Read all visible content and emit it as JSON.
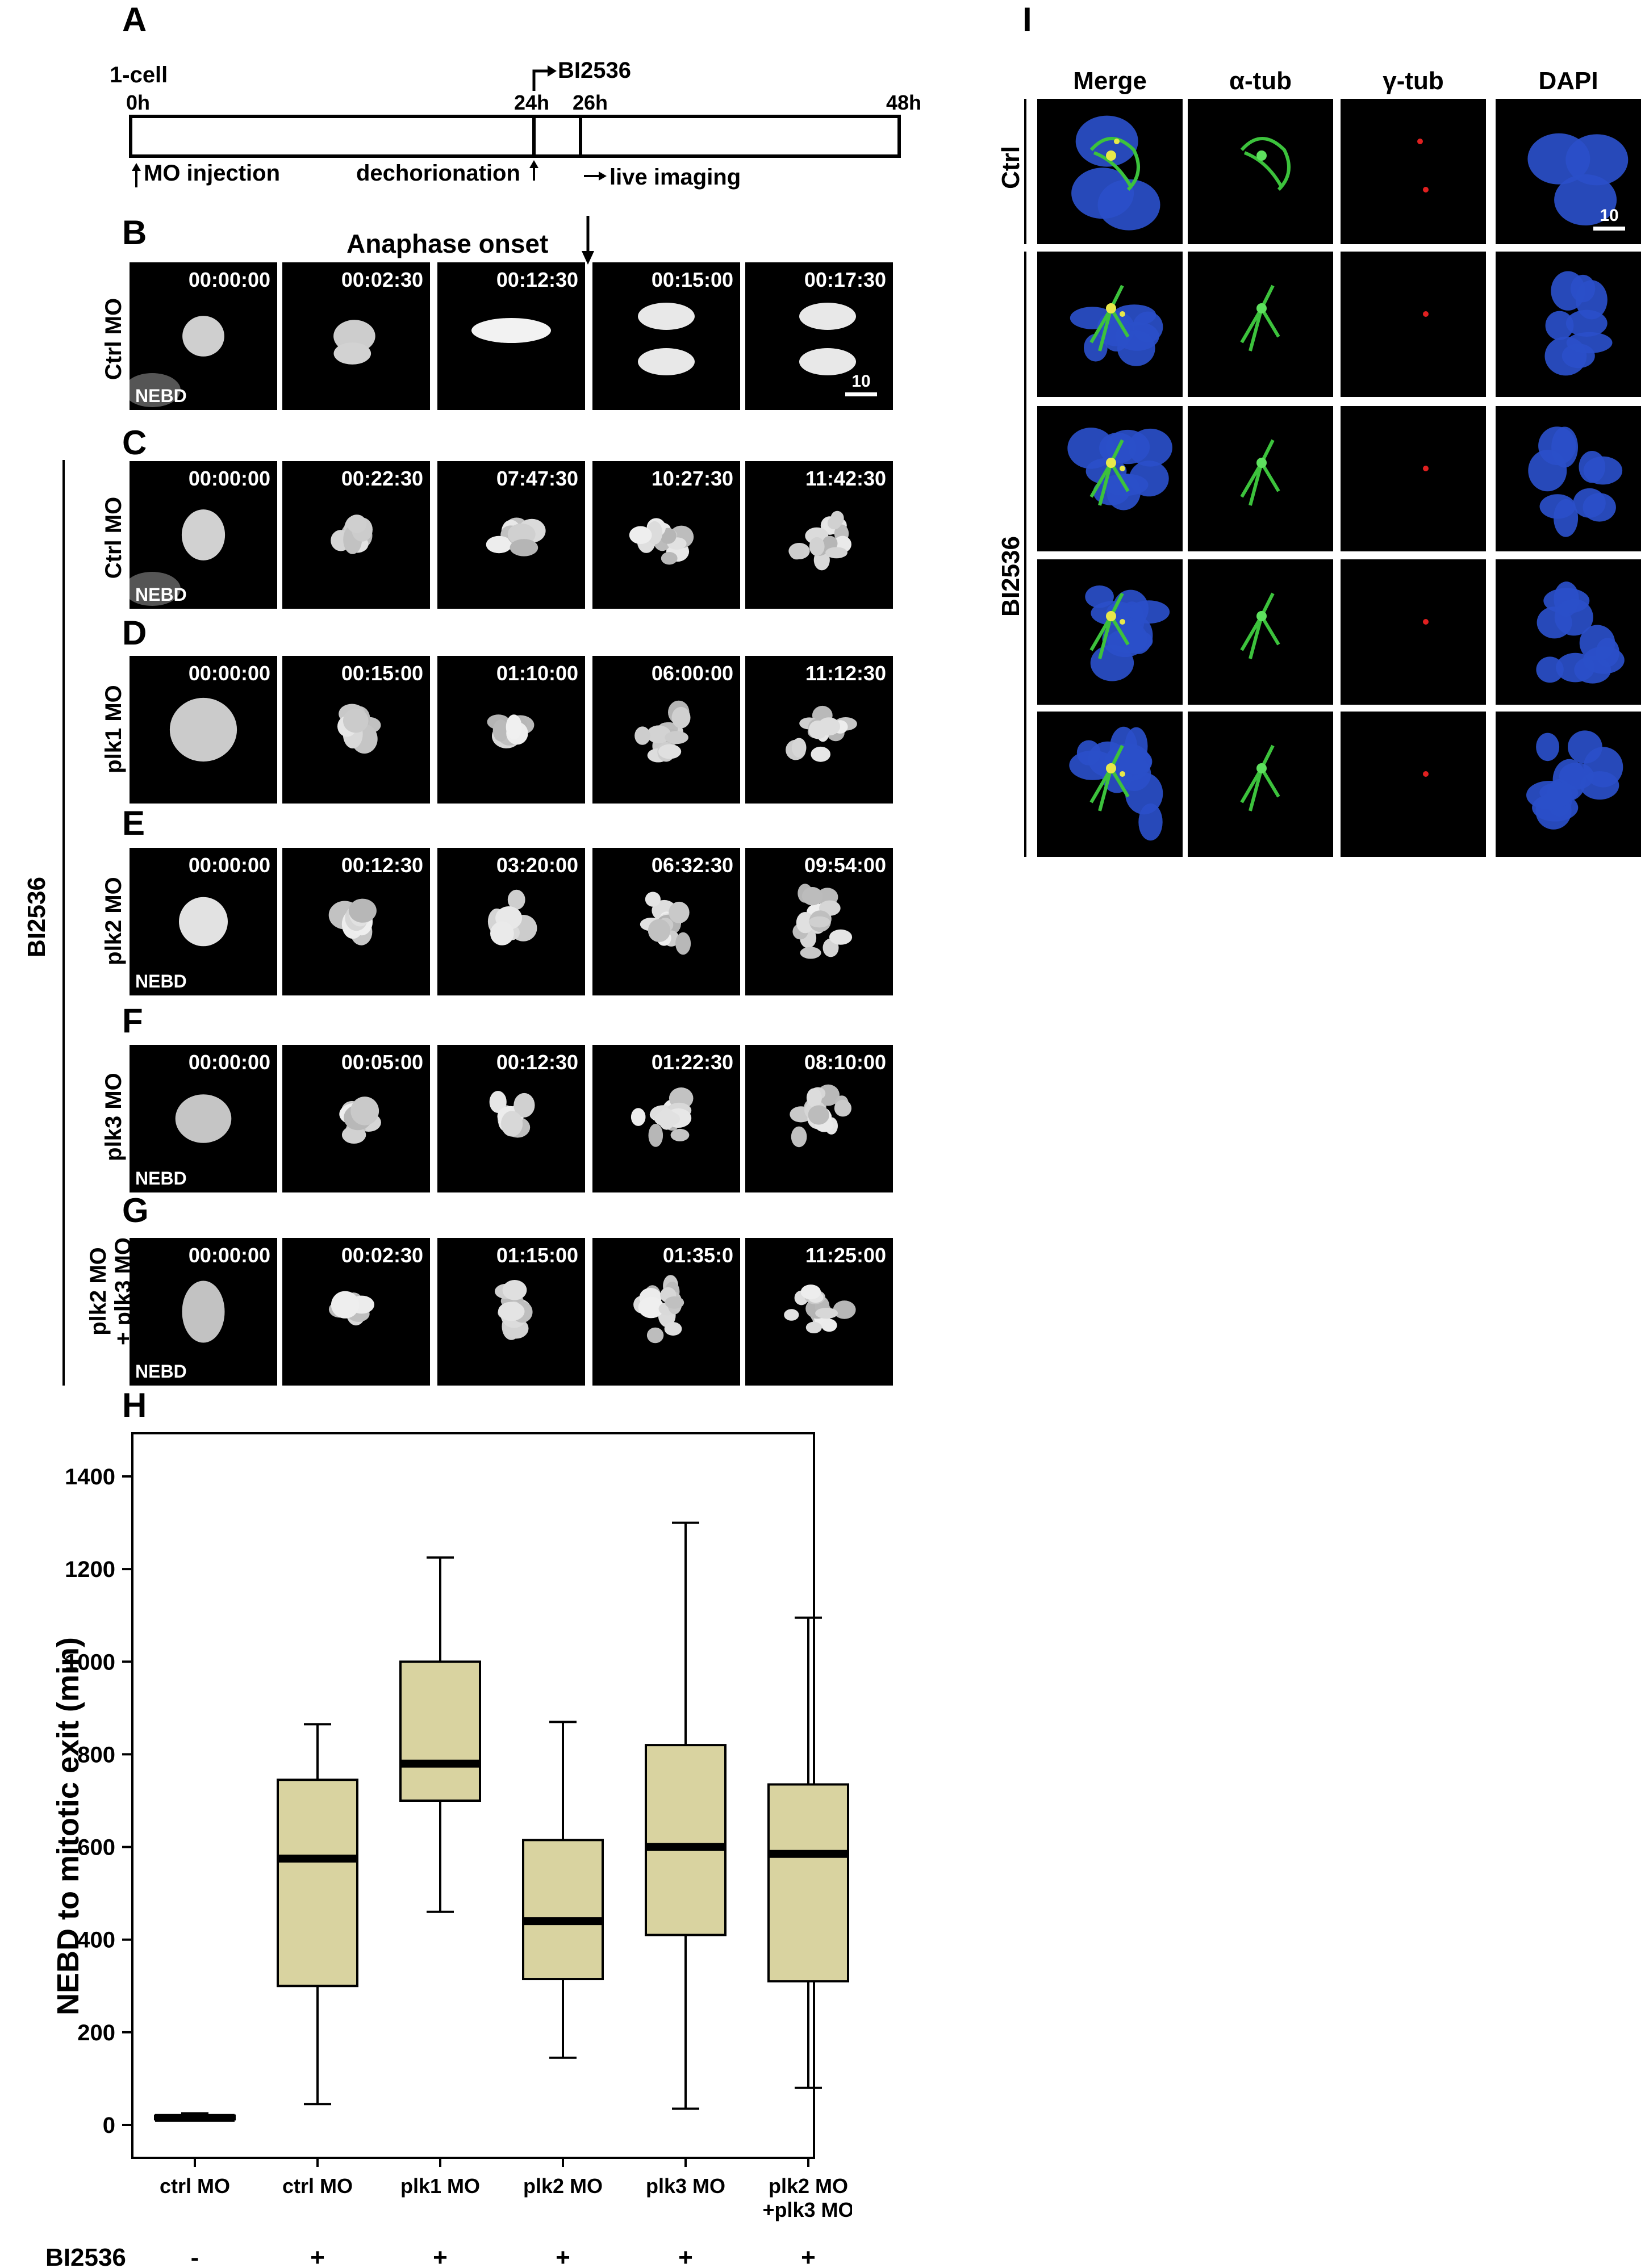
{
  "figure_labels": {
    "A": "A",
    "B": "B",
    "C": "C",
    "D": "D",
    "E": "E",
    "F": "F",
    "G": "G",
    "H": "H",
    "I": "I"
  },
  "timeline": {
    "one_cell": "1-cell",
    "t0": "0h",
    "t24": "24h",
    "t26": "26h",
    "t48": "48h",
    "drug": "BI2536",
    "mo_injection": "MO injection",
    "dechorionation": "dechorionation",
    "live_imaging": "live imaging"
  },
  "anaphase_onset": "Anaphase onset",
  "bi2536_group": "BI2536",
  "nebd": "NEBD",
  "scale_bar_label": "10",
  "rows": [
    {
      "label_line1": "Ctrl",
      "label_line2": "MO",
      "times": [
        "00:00:00",
        "00:02:30",
        "00:12:30",
        "00:15:00",
        "00:17:30"
      ]
    },
    {
      "label_line1": "Ctrl",
      "label_line2": "MO",
      "times": [
        "00:00:00",
        "00:22:30",
        "07:47:30",
        "10:27:30",
        "11:42:30"
      ]
    },
    {
      "label_line1": "plk1",
      "label_line2": "MO",
      "times": [
        "00:00:00",
        "00:15:00",
        "01:10:00",
        "06:00:00",
        "11:12:30"
      ]
    },
    {
      "label_line1": "plk2",
      "label_line2": "MO",
      "times": [
        "00:00:00",
        "00:12:30",
        "03:20:00",
        "06:32:30",
        "09:54:00"
      ]
    },
    {
      "label_line1": "plk3",
      "label_line2": "MO",
      "times": [
        "00:00:00",
        "00:05:00",
        "00:12:30",
        "01:22:30",
        "08:10:00"
      ]
    },
    {
      "label_line1": "plk2 MO",
      "label_line2": "+ plk3 MO",
      "times": [
        "00:00:00",
        "00:02:30",
        "01:15:00",
        "01:35:0",
        "11:25:00"
      ]
    }
  ],
  "panel_i": {
    "columns": [
      "Merge",
      "α-tub",
      "γ-tub",
      "DAPI"
    ],
    "ctrl_label": "Ctrl",
    "bi_label": "BI2536",
    "scale": "10"
  },
  "chart_data": {
    "type": "box",
    "ylabel": "NEBD to mitotic exit (min)",
    "ylim": [
      0,
      1400
    ],
    "yticks": [
      0,
      200,
      400,
      600,
      800,
      1000,
      1200,
      1400
    ],
    "categories": [
      "ctrl MO",
      "ctrl MO",
      "plk1 MO",
      "plk2 MO",
      "plk3 MO",
      "plk2 MO\n+plk3 MO"
    ],
    "category_lines": [
      [
        "ctrl MO"
      ],
      [
        "ctrl MO"
      ],
      [
        "plk1 MO"
      ],
      [
        "plk2 MO"
      ],
      [
        "plk3 MO"
      ],
      [
        "plk2 MO",
        "+plk3 MO"
      ]
    ],
    "bi2536_label": "BI2536",
    "bi2536": [
      "-",
      "+",
      "+",
      "+",
      "+",
      "+"
    ],
    "box_color": "#d9d3a0",
    "boxes": [
      {
        "min": 10,
        "q1": 12,
        "median": 15,
        "q3": 20,
        "max": 25
      },
      {
        "min": 45,
        "q1": 300,
        "median": 575,
        "q3": 745,
        "max": 865
      },
      {
        "min": 460,
        "q1": 700,
        "median": 780,
        "q3": 1000,
        "max": 1225
      },
      {
        "min": 145,
        "q1": 315,
        "median": 440,
        "q3": 615,
        "max": 870
      },
      {
        "min": 35,
        "q1": 410,
        "median": 600,
        "q3": 820,
        "max": 1300
      },
      {
        "min": 80,
        "q1": 310,
        "median": 585,
        "q3": 735,
        "max": 1095
      }
    ]
  }
}
